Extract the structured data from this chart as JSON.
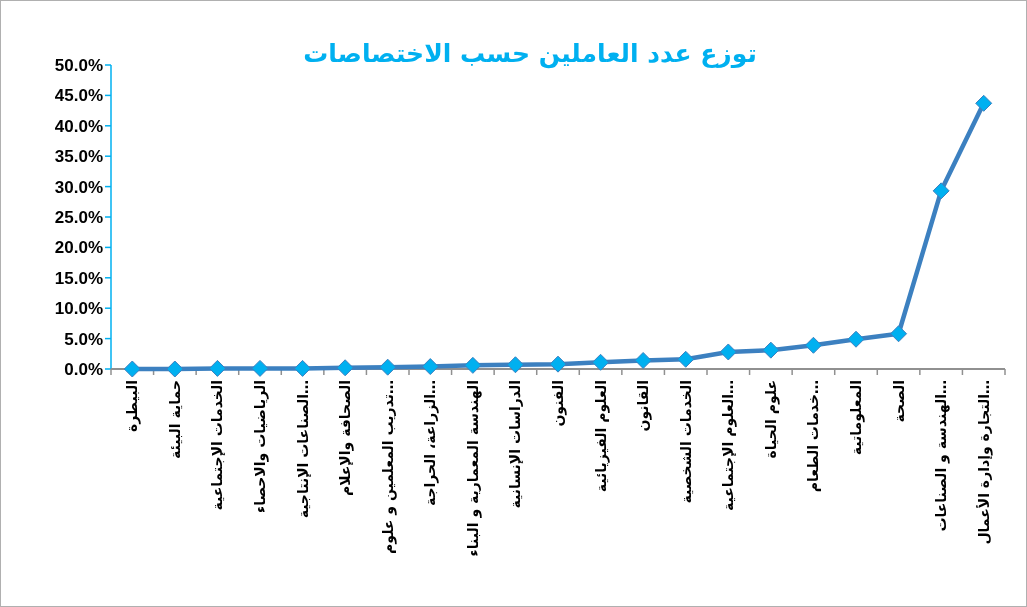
{
  "chart_data": {
    "type": "line",
    "title": "توزع  عدد العاملين حسب الاختصاصات",
    "categories": [
      "البيطرة",
      "حماية البيئة",
      "الخدمات الإجتماعية",
      "الرياضيات والاحصاء",
      "الصناعات الإنتاجية…",
      "الصحافة والإعلام",
      "تدريب المعلمين و علوم…",
      "الزراعة، الحراجة…",
      "الهندسة المعمارية و البناء",
      "الدراسات الإنسانية",
      "الفنون",
      "العلوم الفيزيائية",
      "القانون",
      "الخدمات الشخصية",
      "العلوم الإجتماعية…",
      "علوم الحياة",
      "خدمات الطعام…",
      "المعلوماتية",
      "الصحة",
      "الهندسة و الصناعات…",
      "التجارة وإدارة الأعمال…"
    ],
    "values": [
      0.0,
      0.0,
      0.1,
      0.1,
      0.1,
      0.2,
      0.3,
      0.4,
      0.6,
      0.7,
      0.8,
      1.1,
      1.4,
      1.6,
      2.8,
      3.1,
      3.9,
      4.9,
      5.8,
      29.3,
      43.7
    ],
    "color": "#3c80c0",
    "marker": "diamond",
    "ylim": [
      0,
      50
    ],
    "yticks": [
      {
        "value": 0,
        "label": "0.0%"
      },
      {
        "value": 5,
        "label": "5.0%"
      },
      {
        "value": 10,
        "label": "10.0%"
      },
      {
        "value": 15,
        "label": "15.0%"
      },
      {
        "value": 20,
        "label": "20.0%"
      },
      {
        "value": 25,
        "label": "25.0%"
      },
      {
        "value": 30,
        "label": "30.0%"
      },
      {
        "value": 35,
        "label": "35.0%"
      },
      {
        "value": 40,
        "label": "40.0%"
      },
      {
        "value": 45,
        "label": "45.0%"
      },
      {
        "value": 50,
        "label": "50.0%"
      }
    ]
  }
}
